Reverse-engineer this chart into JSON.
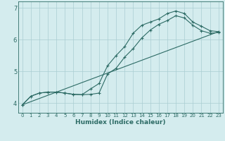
{
  "xlabel": "Humidex (Indice chaleur)",
  "bg_color": "#d4ecee",
  "grid_color": "#aacdd2",
  "line_color": "#2d6b65",
  "xlim": [
    -0.5,
    23.5
  ],
  "ylim": [
    3.7,
    7.2
  ],
  "xticks": [
    0,
    1,
    2,
    3,
    4,
    5,
    6,
    7,
    8,
    9,
    10,
    11,
    12,
    13,
    14,
    15,
    16,
    17,
    18,
    19,
    20,
    21,
    22,
    23
  ],
  "yticks": [
    4,
    5,
    6,
    7
  ],
  "line1_x": [
    0,
    1,
    2,
    3,
    4,
    5,
    6,
    7,
    8,
    9,
    10,
    11,
    12,
    13,
    14,
    15,
    16,
    17,
    18,
    19,
    20,
    21,
    22,
    23
  ],
  "line1_y": [
    3.95,
    4.22,
    4.32,
    4.35,
    4.35,
    4.32,
    4.28,
    4.27,
    4.45,
    4.62,
    5.18,
    5.5,
    5.78,
    6.2,
    6.45,
    6.55,
    6.65,
    6.82,
    6.9,
    6.82,
    6.55,
    6.42,
    6.28,
    6.25
  ],
  "line2_x": [
    0,
    1,
    2,
    3,
    4,
    5,
    6,
    7,
    8,
    9,
    10,
    11,
    12,
    13,
    14,
    15,
    16,
    17,
    18,
    19,
    20,
    21,
    22,
    23
  ],
  "line2_y": [
    3.95,
    4.22,
    4.32,
    4.35,
    4.35,
    4.32,
    4.28,
    4.27,
    4.28,
    4.32,
    4.92,
    5.1,
    5.45,
    5.72,
    6.05,
    6.3,
    6.48,
    6.6,
    6.75,
    6.68,
    6.45,
    6.28,
    6.2,
    6.22
  ],
  "line3_x": [
    0,
    23
  ],
  "line3_y": [
    3.95,
    6.25
  ]
}
